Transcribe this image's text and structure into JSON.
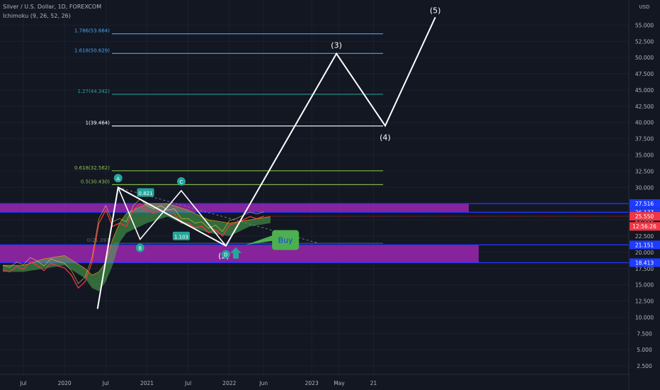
{
  "header": {
    "symbol_line": "Silver / U.S. Dollar, 1D, FOREXCOM",
    "indicator_line": "Ichimoku (9, 26, 52, 26)"
  },
  "price_axis": {
    "currency": "USD",
    "ticks": [
      "55.000",
      "52.500",
      "50.000",
      "47.500",
      "45.000",
      "42.500",
      "40.000",
      "37.500",
      "35.000",
      "32.500",
      "30.000",
      "27.500",
      "25.000",
      "22.500",
      "20.000",
      "17.500",
      "15.000",
      "12.500",
      "10.000",
      "7.500",
      "5.000",
      "2.500"
    ],
    "labels": [
      {
        "text": "27.516",
        "value": 27.516,
        "color": "#1e3cff"
      },
      {
        "text": "26.177",
        "value": 26.177,
        "color": "#1e3cff"
      },
      {
        "text": "25.550",
        "value": 25.55,
        "color": "#f23645"
      },
      {
        "text": "12:56:26",
        "value": 24.0,
        "color": "#f23645"
      },
      {
        "text": "21.151",
        "value": 21.151,
        "color": "#1e3cff"
      },
      {
        "text": "18.413",
        "value": 18.413,
        "color": "#1e3cff"
      }
    ]
  },
  "time_axis": {
    "ticks": [
      {
        "label": "Jul",
        "index": 0
      },
      {
        "label": "2020",
        "index": 6
      },
      {
        "label": "Jul",
        "index": 12
      },
      {
        "label": "2021",
        "index": 18
      },
      {
        "label": "Jul",
        "index": 24
      },
      {
        "label": "2022",
        "index": 30
      },
      {
        "label": "Jun",
        "index": 35
      },
      {
        "label": "2023",
        "index": 42
      },
      {
        "label": "May",
        "index": 46
      },
      {
        "label": "21",
        "index": 51
      }
    ]
  },
  "chart_data": {
    "type": "line",
    "title": "Silver / U.S. Dollar, 1D, FOREXCOM",
    "ylabel": "USD",
    "ylim": [
      0,
      57
    ],
    "price_history": {
      "x_month_index": [
        -3,
        -2,
        -1,
        0,
        1,
        2,
        3,
        4,
        5,
        6,
        7,
        8,
        9,
        10,
        11,
        12,
        13,
        14,
        15,
        16,
        17,
        18,
        19,
        20,
        21,
        22,
        23,
        24,
        25,
        26,
        27,
        28,
        29,
        30,
        31,
        32,
        33,
        34,
        35
      ],
      "close": [
        17.3,
        17.0,
        17.8,
        17.4,
        18.5,
        18.0,
        17.2,
        18.3,
        17.9,
        17.6,
        16.5,
        14.5,
        15.5,
        18.5,
        24.5,
        26.5,
        24.0,
        24.5,
        24.0,
        26.5,
        27.5,
        26.5,
        26.0,
        26.5,
        25.8,
        26.0,
        24.5,
        24.5,
        23.8,
        24.0,
        23.0,
        23.5,
        22.5,
        24.2,
        24.5,
        25.0,
        25.5,
        25.2,
        25.55
      ]
    },
    "kumo_cloud": {
      "x_month_index": [
        -3,
        0,
        3,
        6,
        9,
        10,
        11,
        12,
        13,
        14,
        15,
        18,
        21,
        24,
        27,
        30,
        33,
        36
      ],
      "top": [
        18.0,
        18.0,
        19.0,
        19.5,
        17.5,
        16.5,
        17.0,
        18.5,
        22.0,
        24.5,
        26.0,
        27.5,
        27.5,
        26.5,
        25.0,
        24.5,
        25.0,
        25.5
      ],
      "bottom": [
        17.0,
        17.0,
        17.5,
        18.0,
        16.0,
        14.5,
        14.0,
        15.5,
        18.0,
        21.5,
        23.0,
        24.5,
        25.5,
        24.0,
        23.0,
        22.5,
        24.0,
        24.5
      ]
    },
    "elliott_wave": {
      "x_month_index": [
        10.8,
        13.8,
        29.5,
        45.6,
        52.7,
        60.0
      ],
      "y": [
        11.3,
        30.0,
        21.0,
        50.6,
        39.5,
        56.2
      ],
      "labels": [
        "",
        "",
        "(2)",
        "(3)",
        "(4)",
        "(5)"
      ]
    },
    "pattern": {
      "points": [
        {
          "label": "A",
          "x": 13.8,
          "y": 30.0
        },
        {
          "label": "B",
          "x": 17.0,
          "y": 22.0
        },
        {
          "label": "C",
          "x": 23.0,
          "y": 29.5
        },
        {
          "label": "D",
          "x": 29.5,
          "y": 21.0
        }
      ],
      "ratios": [
        {
          "text": "0.821",
          "x": 17.8,
          "y": 29.0
        },
        {
          "text": "1.103",
          "x": 23.0,
          "y": 22.3
        }
      ]
    },
    "fib_levels": [
      {
        "label": "1.786(53.664)",
        "value": 53.664,
        "color": "#42a5f5"
      },
      {
        "label": "1.618(50.629)",
        "value": 50.629,
        "color": "#42a5f5"
      },
      {
        "label": "1.27(44.342)",
        "value": 44.342,
        "color": "#26a69a"
      },
      {
        "label": "1(39.464)",
        "value": 39.464,
        "color": "#ffffff"
      },
      {
        "label": "0.618(32.562)",
        "value": 32.562,
        "color": "#8bc34a"
      },
      {
        "label": "0.5(30.430)",
        "value": 30.43,
        "color": "#8bc34a"
      },
      {
        "label": "0(21.397)",
        "value": 21.397,
        "color": "#5d606b"
      }
    ],
    "zones": [
      {
        "top": 27.516,
        "bottom": 26.177,
        "color": "#9c27b0"
      },
      {
        "top": 21.151,
        "bottom": 18.413,
        "color": "#9c27b0"
      }
    ],
    "trendline": {
      "x": [
        13.8,
        43.0
      ],
      "y": [
        30.0,
        21.4
      ]
    },
    "annotations": [
      {
        "text": "Buy",
        "x": 32.3,
        "y": 22.0,
        "color": "#4caf50"
      }
    ]
  }
}
